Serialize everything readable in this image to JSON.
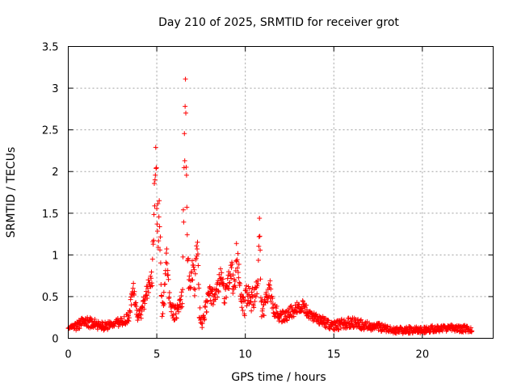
{
  "chart_data": {
    "type": "scatter",
    "title": "Day 210 of 2025, SRMTID for receiver grot",
    "xlabel": "GPS time / hours",
    "ylabel": "SRMTID / TECUs",
    "xlim": [
      0,
      24
    ],
    "ylim": [
      0,
      3.5
    ],
    "x_ticks": [
      0,
      5,
      10,
      15,
      20
    ],
    "x_tick_labels": [
      "0",
      "5",
      "10",
      "15",
      "20"
    ],
    "y_ticks": [
      0,
      0.5,
      1,
      1.5,
      2,
      2.5,
      3,
      3.5
    ],
    "y_tick_labels": [
      "0",
      "0.5",
      "1",
      "1.5",
      "2",
      "2.5",
      "3",
      "3.5"
    ],
    "grid": true,
    "marker": "+",
    "color": "#ff0000",
    "x_step": 0.02,
    "series": [
      {
        "name": "SRMTID",
        "profile_hours": [
          0,
          0.5,
          1.0,
          1.5,
          2.0,
          2.5,
          3.0,
          3.4,
          3.5,
          3.7,
          3.9,
          4.1,
          4.3,
          4.5,
          4.6,
          4.75,
          4.85,
          4.95,
          5.05,
          5.15,
          5.3,
          5.45,
          5.55,
          5.7,
          5.85,
          6.0,
          6.2,
          6.35,
          6.45,
          6.55,
          6.62,
          6.7,
          6.8,
          6.9,
          7.0,
          7.15,
          7.3,
          7.4,
          7.55,
          7.7,
          7.85,
          8.0,
          8.2,
          8.4,
          8.6,
          8.8,
          9.0,
          9.2,
          9.4,
          9.5,
          9.65,
          9.8,
          9.95,
          10.1,
          10.3,
          10.5,
          10.7,
          10.8,
          10.9,
          11.0,
          11.2,
          11.4,
          11.6,
          11.8,
          12.0,
          12.4,
          12.8,
          13.2,
          13.6,
          14.0,
          14.5,
          15.0,
          15.5,
          16.0,
          16.5,
          17.0,
          17.5,
          18.0,
          18.5,
          19.0,
          19.5,
          20.0,
          20.5,
          21.0,
          21.5,
          22.0,
          22.5,
          22.8
        ],
        "profile_tecu": [
          0.12,
          0.16,
          0.2,
          0.18,
          0.15,
          0.17,
          0.2,
          0.25,
          0.4,
          0.6,
          0.25,
          0.3,
          0.45,
          0.6,
          0.68,
          0.75,
          1.6,
          2.2,
          1.3,
          1.5,
          0.35,
          0.6,
          0.95,
          0.5,
          0.35,
          0.3,
          0.35,
          0.45,
          0.55,
          2.0,
          3.05,
          1.4,
          0.7,
          0.65,
          0.85,
          0.65,
          1.25,
          0.35,
          0.2,
          0.3,
          0.45,
          0.55,
          0.5,
          0.6,
          0.75,
          0.55,
          0.6,
          0.85,
          0.55,
          1.1,
          0.75,
          0.45,
          0.4,
          0.55,
          0.5,
          0.45,
          0.6,
          1.4,
          0.4,
          0.3,
          0.5,
          0.6,
          0.35,
          0.3,
          0.25,
          0.3,
          0.35,
          0.4,
          0.3,
          0.25,
          0.2,
          0.15,
          0.18,
          0.2,
          0.17,
          0.15,
          0.14,
          0.12,
          0.1,
          0.1,
          0.11,
          0.1,
          0.12,
          0.11,
          0.13,
          0.12,
          0.11,
          0.12
        ],
        "noise_band_tecu": [
          0,
          0.12,
          0.14,
          0.12,
          0.1,
          0.1,
          0.12,
          0.12,
          0.2,
          0.25,
          0.12,
          0.14,
          0.18,
          0.2,
          0.2,
          0.25,
          0.6,
          0.4,
          0.7,
          0.5,
          0.2,
          0.3,
          0.35,
          0.3,
          0.2,
          0.2,
          0.2,
          0.2,
          0.3,
          0.9,
          0.2,
          0.6,
          0.3,
          0.3,
          0.3,
          0.3,
          0.2,
          0.2,
          0.15,
          0.15,
          0.2,
          0.25,
          0.25,
          0.25,
          0.2,
          0.25,
          0.3,
          0.3,
          0.3,
          0.3,
          0.3,
          0.3,
          0.3,
          0.3,
          0.3,
          0.3,
          0.3,
          0.1,
          0.3,
          0.2,
          0.2,
          0.2,
          0.2,
          0.18,
          0.15,
          0.15,
          0.15,
          0.15,
          0.15,
          0.12,
          0.12,
          0.12,
          0.12,
          0.12,
          0.12,
          0.1,
          0.1,
          0.08,
          0.08,
          0.08,
          0.08,
          0.08,
          0.08,
          0.08,
          0.08,
          0.08,
          0.1,
          0.08
        ]
      }
    ]
  }
}
